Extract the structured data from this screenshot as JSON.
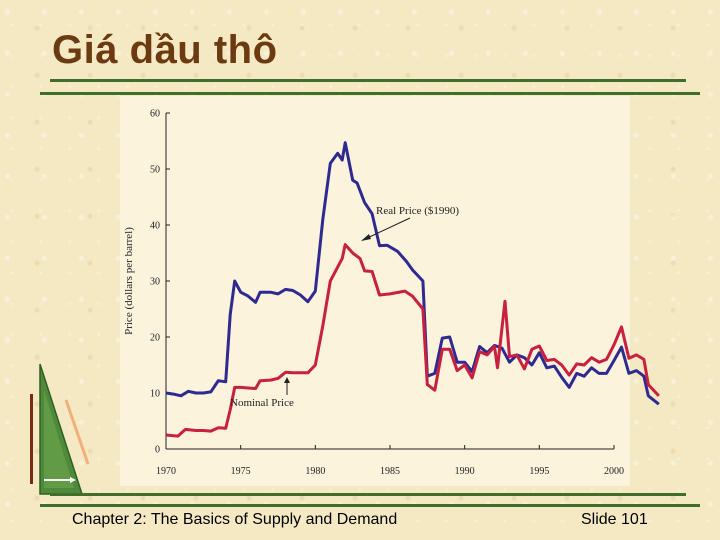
{
  "slide": {
    "title": "Giá dầu thô",
    "footer_left": "Chapter 2: The Basics of Supply and Demand",
    "footer_right": "Slide 101"
  },
  "colors": {
    "real": "#2e2a8f",
    "nominal": "#c8203e",
    "rules": "#3f6f2a",
    "title": "#6b3a10"
  },
  "chart_data": {
    "type": "line",
    "title": "",
    "xlabel": "",
    "ylabel": "Price (dollars per barrel)",
    "xlim": [
      1970,
      2000
    ],
    "ylim": [
      0,
      60
    ],
    "xticks": [
      1970,
      1975,
      1980,
      1985,
      1990,
      1995,
      2000
    ],
    "yticks": [
      0,
      10,
      20,
      30,
      40,
      50,
      60
    ],
    "grid": false,
    "series": [
      {
        "name": "Real Price ($1990)",
        "color": "#2e2a8f",
        "points": [
          [
            1970,
            10
          ],
          [
            1970.5,
            9.8
          ],
          [
            1971,
            9.5
          ],
          [
            1971.5,
            10.3
          ],
          [
            1972,
            10
          ],
          [
            1972.5,
            10
          ],
          [
            1973,
            10.2
          ],
          [
            1973.5,
            12.2
          ],
          [
            1974,
            12
          ],
          [
            1974.3,
            24
          ],
          [
            1974.6,
            30
          ],
          [
            1975,
            28
          ],
          [
            1975.5,
            27.3
          ],
          [
            1976,
            26.2
          ],
          [
            1976.3,
            28
          ],
          [
            1977,
            28
          ],
          [
            1977.5,
            27.7
          ],
          [
            1978,
            28.5
          ],
          [
            1978.5,
            28.3
          ],
          [
            1979,
            27.5
          ],
          [
            1979.5,
            26.3
          ],
          [
            1980,
            28.2
          ],
          [
            1980.5,
            41
          ],
          [
            1981,
            51
          ],
          [
            1981.5,
            52.8
          ],
          [
            1981.8,
            51.6
          ],
          [
            1982,
            54.7
          ],
          [
            1982.5,
            48
          ],
          [
            1982.8,
            47.5
          ],
          [
            1983.3,
            44
          ],
          [
            1983.8,
            42
          ],
          [
            1984.3,
            36.3
          ],
          [
            1984.8,
            36.4
          ],
          [
            1985.5,
            35.3
          ],
          [
            1986.1,
            33.5
          ],
          [
            1986.5,
            32
          ],
          [
            1987.2,
            30
          ],
          [
            1987.5,
            13
          ],
          [
            1988,
            13.5
          ],
          [
            1988.5,
            19.8
          ],
          [
            1989,
            20
          ],
          [
            1989.5,
            15.5
          ],
          [
            1990,
            15.5
          ],
          [
            1990.5,
            13.8
          ],
          [
            1991,
            18.3
          ],
          [
            1991.5,
            17.2
          ],
          [
            1992,
            18.5
          ],
          [
            1992.5,
            18
          ],
          [
            1993,
            15.5
          ],
          [
            1993.5,
            16.8
          ],
          [
            1994,
            16.3
          ],
          [
            1994.5,
            15
          ],
          [
            1995,
            17.2
          ],
          [
            1995.5,
            14.5
          ],
          [
            1996,
            14.8
          ],
          [
            1996.5,
            12.8
          ],
          [
            1997,
            11
          ],
          [
            1997.5,
            13.5
          ],
          [
            1998,
            13
          ],
          [
            1998.5,
            14.5
          ],
          [
            1999,
            13.5
          ],
          [
            1999.5,
            13.5
          ],
          [
            2000,
            15.8
          ],
          [
            2000.5,
            18.2
          ],
          [
            2001,
            13.5
          ],
          [
            2001.5,
            14
          ],
          [
            2002,
            13
          ],
          [
            2002.3,
            9.5
          ],
          [
            2003,
            8
          ]
        ]
      },
      {
        "name": "Nominal Price",
        "color": "#c8203e",
        "points": [
          [
            1970,
            2.5
          ],
          [
            1970.8,
            2.3
          ],
          [
            1971.3,
            3.5
          ],
          [
            1972,
            3.3
          ],
          [
            1972.5,
            3.3
          ],
          [
            1973,
            3.2
          ],
          [
            1973.5,
            3.8
          ],
          [
            1974,
            3.7
          ],
          [
            1974.3,
            7
          ],
          [
            1974.6,
            11
          ],
          [
            1975,
            11
          ],
          [
            1975.5,
            10.9
          ],
          [
            1976,
            10.8
          ],
          [
            1976.3,
            12.2
          ],
          [
            1977,
            12.3
          ],
          [
            1977.5,
            12.6
          ],
          [
            1978,
            13.7
          ],
          [
            1978.5,
            13.6
          ],
          [
            1979,
            13.6
          ],
          [
            1979.5,
            13.6
          ],
          [
            1980,
            15
          ],
          [
            1980.5,
            22
          ],
          [
            1981,
            30
          ],
          [
            1981.8,
            34
          ],
          [
            1982,
            36.5
          ],
          [
            1982.5,
            35
          ],
          [
            1983,
            34
          ],
          [
            1983.3,
            31.8
          ],
          [
            1983.8,
            31.7
          ],
          [
            1984.3,
            27.5
          ],
          [
            1985,
            27.7
          ],
          [
            1986,
            28.2
          ],
          [
            1986.5,
            27.3
          ],
          [
            1987.2,
            25
          ],
          [
            1987.5,
            11.5
          ],
          [
            1988,
            10.5
          ],
          [
            1988.5,
            17.8
          ],
          [
            1989,
            17.8
          ],
          [
            1989.5,
            14
          ],
          [
            1990,
            15
          ],
          [
            1990.5,
            12.7
          ],
          [
            1991,
            17.4
          ],
          [
            1991.5,
            16.8
          ],
          [
            1992,
            18.3
          ],
          [
            1992.2,
            14.5
          ],
          [
            1992.7,
            26.4
          ],
          [
            1993,
            16.5
          ],
          [
            1993.5,
            16.8
          ],
          [
            1994,
            14.3
          ],
          [
            1994.5,
            17.8
          ],
          [
            1995,
            18.4
          ],
          [
            1995.5,
            15.8
          ],
          [
            1996,
            16
          ],
          [
            1996.5,
            15
          ],
          [
            1997,
            13.2
          ],
          [
            1997.5,
            15.2
          ],
          [
            1998,
            15
          ],
          [
            1998.5,
            16.3
          ],
          [
            1999,
            15.5
          ],
          [
            1999.5,
            16
          ],
          [
            2000,
            18.6
          ],
          [
            2000.5,
            21.8
          ],
          [
            2001,
            16.2
          ],
          [
            2001.5,
            16.8
          ],
          [
            2002,
            16
          ],
          [
            2002.3,
            11.5
          ],
          [
            2003,
            9.5
          ]
        ]
      }
    ],
    "annotations": [
      {
        "text": "Real Price ($1990)",
        "series": 0
      },
      {
        "text": "Nominal Price",
        "series": 1
      }
    ]
  }
}
